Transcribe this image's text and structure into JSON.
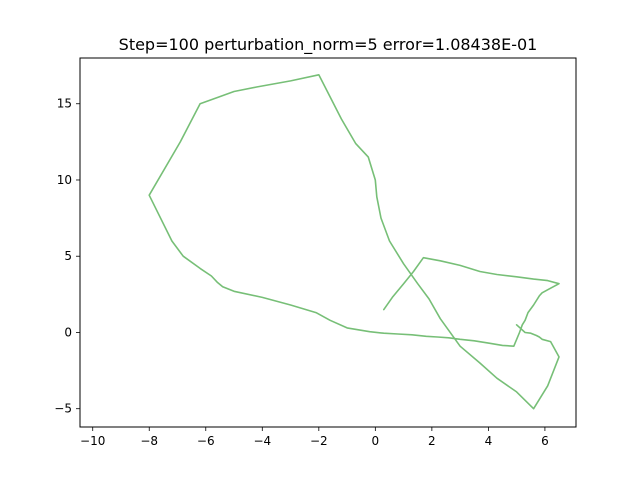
{
  "chart_data": {
    "type": "line",
    "title": "Step=100 perturbation_norm=5 error=1.08438E-01",
    "xlabel": "",
    "ylabel": "",
    "xlim": [
      -10.45,
      7.1
    ],
    "ylim": [
      -6.2,
      18.0
    ],
    "xticks": [
      -10,
      -8,
      -6,
      -4,
      -2,
      0,
      2,
      4,
      6
    ],
    "yticks": [
      -5,
      0,
      5,
      10,
      15
    ],
    "xtick_labels": [
      "−10",
      "−8",
      "−6",
      "−4",
      "−2",
      "0",
      "2",
      "4",
      "6"
    ],
    "ytick_labels": [
      "−5",
      "0",
      "5",
      "10",
      "15"
    ],
    "grid": false,
    "legend": "none",
    "line_color": "#77bf77",
    "series": [
      {
        "x": [
          0.3,
          0.6,
          1.0,
          1.35,
          1.7,
          2.3,
          3.0,
          3.7,
          4.3,
          5.0,
          5.6,
          6.1,
          6.5,
          6.2,
          5.9,
          5.8,
          5.6,
          5.4,
          5.3,
          5.2,
          5.1,
          4.9,
          4.5,
          4.0,
          3.5,
          3.0,
          2.6,
          2.2,
          1.8,
          1.3,
          0.8,
          0.3,
          -0.2,
          -1.0,
          -1.6,
          -2.1,
          -3.0,
          -4.0,
          -5.0,
          -5.4,
          -5.6,
          -5.8,
          -6.2,
          -6.8,
          -7.2,
          -8.0,
          -6.9,
          -6.2,
          -5.6,
          -5.0,
          -4.2,
          -3.0,
          -2.0,
          -1.2,
          -0.7,
          -0.25,
          0.0,
          0.05,
          0.2,
          0.5,
          1.0,
          1.5,
          1.9,
          2.3,
          3.0,
          3.7,
          4.3,
          5.0,
          5.6,
          6.1,
          6.5,
          6.2,
          5.9,
          5.8,
          5.7,
          5.5,
          5.3,
          5.0
        ],
        "y": [
          1.5,
          2.3,
          3.2,
          4.0,
          4.9,
          4.7,
          4.4,
          4.0,
          3.8,
          3.65,
          3.5,
          3.4,
          3.2,
          2.9,
          2.6,
          2.4,
          1.8,
          1.3,
          0.8,
          0.5,
          0.0,
          -0.9,
          -0.85,
          -0.7,
          -0.55,
          -0.45,
          -0.35,
          -0.3,
          -0.25,
          -0.15,
          -0.1,
          -0.05,
          0.05,
          0.3,
          0.8,
          1.3,
          1.8,
          2.3,
          2.7,
          3.0,
          3.3,
          3.7,
          4.2,
          5.0,
          6.0,
          9.0,
          12.5,
          15.0,
          15.4,
          15.8,
          16.1,
          16.5,
          16.9,
          14.0,
          12.4,
          11.5,
          10.0,
          8.9,
          7.5,
          6.0,
          4.5,
          3.2,
          2.2,
          0.9,
          -0.9,
          -2.0,
          -3.0,
          -3.9,
          -5.0,
          -3.5,
          -1.6,
          -0.6,
          -0.45,
          -0.3,
          -0.2,
          -0.05,
          0.0,
          0.5
        ],
        "comment_reading_order_note": ""
      }
    ]
  }
}
